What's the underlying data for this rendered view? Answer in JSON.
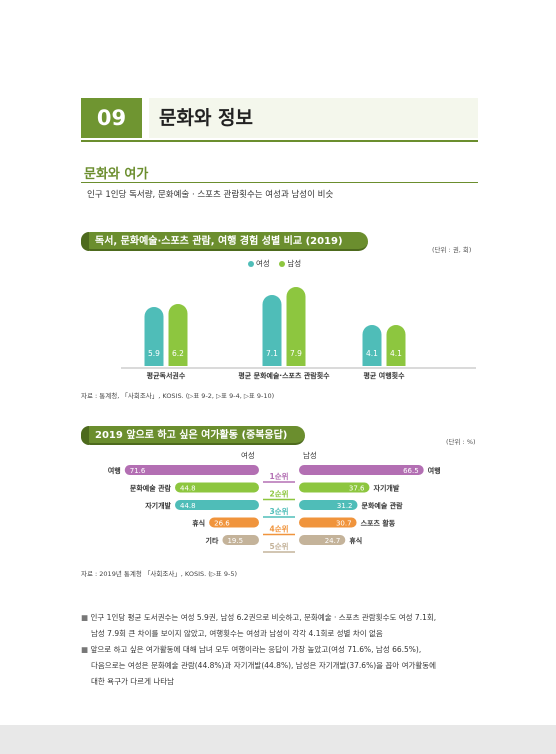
{
  "header": {
    "number": "09",
    "title": "문화와 정보"
  },
  "section": {
    "title": "문화와 여가",
    "subtitle": "인구 1인당 독서량, 문화예술 · 스포츠 관람횟수는 여성과 남성이 비슷"
  },
  "chart1": {
    "pill": "독서, 문화예술·스포츠 관람, 여행 경험 성별 비교 (2019)",
    "unit": "(단위 : 권, 회)",
    "source": "자료 : 통계청, 「사회조사」, KOSIS. (▷표 9-2, ▷표 9-4, ▷표 9-10)"
  },
  "chart2": {
    "pill": "2019 앞으로 하고 싶은 여가활동 (중복응답)",
    "unit": "(단위 : %)",
    "left_header": "여성",
    "right_header": "남성",
    "source": "자료 : 2019년 통계청 「사회조사」, KOSIS. (▷표 9-5)"
  },
  "chart_data": [
    {
      "type": "bar",
      "categories": [
        "평균독서권수",
        "평균 문화예술·스포츠 관람횟수",
        "평균 여행횟수"
      ],
      "series": [
        {
          "name": "여성",
          "values": [
            5.9,
            7.1,
            4.1
          ]
        },
        {
          "name": "남성",
          "values": [
            6.2,
            7.9,
            4.1
          ]
        }
      ],
      "ylim": [
        0,
        9
      ],
      "colors": [
        "#4fbdb8",
        "#8dc63f"
      ],
      "legend": "top-center"
    },
    {
      "type": "bar",
      "ranks": [
        "1순위",
        "2순위",
        "3순위",
        "4순위",
        "5순위"
      ],
      "rank_colors": [
        "#b36fb3",
        "#8dc63f",
        "#4fbdb8",
        "#f0943c",
        "#c4b39a"
      ],
      "women": [
        {
          "label": "여행",
          "value": 71.6
        },
        {
          "label": "문화예술 관람",
          "value": 44.8
        },
        {
          "label": "자기개발",
          "value": 44.8
        },
        {
          "label": "휴식",
          "value": 26.6
        },
        {
          "label": "기타",
          "value": 19.5
        }
      ],
      "men": [
        {
          "label": "여행",
          "value": 66.5
        },
        {
          "label": "자기개발",
          "value": 37.6
        },
        {
          "label": "문화예술 관람",
          "value": 31.2
        },
        {
          "label": "스포츠 활동",
          "value": 30.7
        },
        {
          "label": "휴식",
          "value": 24.7
        }
      ],
      "xlim": [
        0,
        80
      ]
    }
  ],
  "bullets": [
    "인구 1인당 평균 도서권수는 여성 5.9권, 남성 6.2권으로 비슷하고, 문화예술 · 스포츠 관람횟수도 여성 7.1회,",
    "남성 7.9회 큰 차이를 보이지 않았고, 여행횟수는 여성과 남성이 각각 4.1회로 성별 차이 없음",
    "앞으로 하고 싶은 여가활동에 대해 남녀 모두 여행이라는 응답이 가장 높았고(여성 71.6%, 남성 66.5%),",
    "다음으로는 여성은 문화예술 관람(44.8%)과 자기개발(44.8%), 남성은 자기개발(37.6%)을 꼽아 여가활동에",
    "대한 욕구가 다르게 나타남"
  ]
}
